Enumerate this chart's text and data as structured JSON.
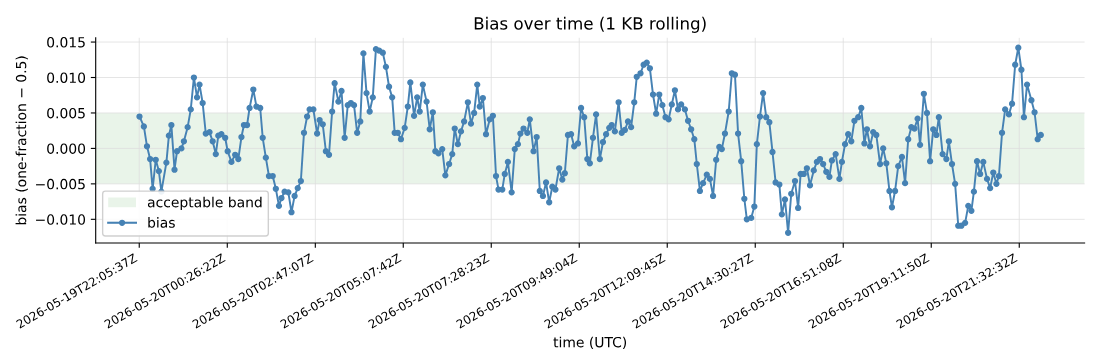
{
  "chart_data": {
    "type": "line",
    "title": "Bias over time (1 KB rolling)",
    "xlabel": "time (UTC)",
    "ylabel": "bias (one-fraction − 0.5)",
    "xlim": [
      "2026-05-19T20:56",
      "2026-05-20T23:17"
    ],
    "ylim": [
      -0.01334,
      0.0156
    ],
    "xticks": [
      {
        "value": "2026-05-19T22:05:37",
        "label": "2026-05-19T22:05:37Z"
      },
      {
        "value": "2026-05-20T00:26:22",
        "label": "2026-05-20T00:26:22Z"
      },
      {
        "value": "2026-05-20T02:47:07",
        "label": "2026-05-20T02:47:07Z"
      },
      {
        "value": "2026-05-20T05:07:42",
        "label": "2026-05-20T05:07:42Z"
      },
      {
        "value": "2026-05-20T07:28:23",
        "label": "2026-05-20T07:28:23Z"
      },
      {
        "value": "2026-05-20T09:49:04",
        "label": "2026-05-20T09:49:04Z"
      },
      {
        "value": "2026-05-20T12:09:45",
        "label": "2026-05-20T12:09:45Z"
      },
      {
        "value": "2026-05-20T14:30:27",
        "label": "2026-05-20T14:30:27Z"
      },
      {
        "value": "2026-05-20T16:51:08",
        "label": "2026-05-20T16:51:08Z"
      },
      {
        "value": "2026-05-20T19:11:50",
        "label": "2026-05-20T19:11:50Z"
      },
      {
        "value": "2026-05-20T21:32:32",
        "label": "2026-05-20T21:32:32Z"
      }
    ],
    "yticks": [
      {
        "value": -0.01,
        "label": "−0.010"
      },
      {
        "value": -0.005,
        "label": "−0.005"
      },
      {
        "value": 0,
        "label": "0.000"
      },
      {
        "value": 0.005,
        "label": "0.005"
      },
      {
        "value": 0.01,
        "label": "0.010"
      },
      {
        "value": 0.015,
        "label": "0.015"
      }
    ],
    "grid": true,
    "legend": "bottom left",
    "marker": "circle",
    "line_style": "solid",
    "bands": [
      {
        "axis": "y",
        "from": -0.005,
        "to": 0.005,
        "label": "acceptable band",
        "color": "#e9f4e9"
      }
    ],
    "series": [
      {
        "name": "bias",
        "color": "#4682b4",
        "x": [
          "2026-05-19T22:06",
          "2026-05-19T22:13",
          "2026-05-19T22:18",
          "2026-05-19T22:23",
          "2026-05-19T22:27",
          "2026-05-19T22:32",
          "2026-05-19T22:37",
          "2026-05-19T22:41",
          "2026-05-19T22:49",
          "2026-05-19T22:53",
          "2026-05-19T22:57",
          "2026-05-19T23:02",
          "2026-05-19T23:06",
          "2026-05-19T23:13",
          "2026-05-19T23:17",
          "2026-05-19T23:23",
          "2026-05-19T23:28",
          "2026-05-19T23:33",
          "2026-05-19T23:38",
          "2026-05-19T23:42",
          "2026-05-19T23:47",
          "2026-05-19T23:52",
          "2026-05-19T23:58",
          "2026-05-20T00:03",
          "2026-05-20T00:08",
          "2026-05-20T00:12",
          "2026-05-20T00:17",
          "2026-05-20T00:23",
          "2026-05-20T00:27",
          "2026-05-20T00:33",
          "2026-05-20T00:39",
          "2026-05-20T00:44",
          "2026-05-20T00:49",
          "2026-05-20T00:53",
          "2026-05-20T00:58",
          "2026-05-20T01:02",
          "2026-05-20T01:08",
          "2026-05-20T01:13",
          "2026-05-20T01:19",
          "2026-05-20T01:23",
          "2026-05-20T01:28",
          "2026-05-20T01:33",
          "2026-05-20T01:39",
          "2026-05-20T01:44",
          "2026-05-20T01:49",
          "2026-05-20T01:53",
          "2026-05-20T01:58",
          "2026-05-20T02:04",
          "2026-05-20T02:09",
          "2026-05-20T02:14",
          "2026-05-20T02:19",
          "2026-05-20T02:24",
          "2026-05-20T02:29",
          "2026-05-20T02:34",
          "2026-05-20T02:38",
          "2026-05-20T02:44",
          "2026-05-20T02:50",
          "2026-05-20T02:54",
          "2026-05-20T02:59",
          "2026-05-20T03:04",
          "2026-05-20T03:09",
          "2026-05-20T03:14",
          "2026-05-20T03:18",
          "2026-05-20T03:24",
          "2026-05-20T03:29",
          "2026-05-20T03:34",
          "2026-05-20T03:39",
          "2026-05-20T03:44",
          "2026-05-20T03:49",
          "2026-05-20T03:54",
          "2026-05-20T03:59",
          "2026-05-20T04:04",
          "2026-05-20T04:09",
          "2026-05-20T04:14",
          "2026-05-20T04:19",
          "2026-05-20T04:24",
          "2026-05-20T04:29",
          "2026-05-20T04:35",
          "2026-05-20T04:40",
          "2026-05-20T04:45",
          "2026-05-20T04:50",
          "2026-05-20T04:54",
          "2026-05-20T04:59",
          "2026-05-20T05:04",
          "2026-05-20T05:10",
          "2026-05-20T05:15",
          "2026-05-20T05:19",
          "2026-05-20T05:25",
          "2026-05-20T05:30",
          "2026-05-20T05:34",
          "2026-05-20T05:39",
          "2026-05-20T05:45",
          "2026-05-20T05:50",
          "2026-05-20T05:55",
          "2026-05-20T05:59",
          "2026-05-20T06:04",
          "2026-05-20T06:10",
          "2026-05-20T06:15",
          "2026-05-20T06:21",
          "2026-05-20T06:26",
          "2026-05-20T06:30",
          "2026-05-20T06:35",
          "2026-05-20T06:40",
          "2026-05-20T06:45",
          "2026-05-20T06:51",
          "2026-05-20T06:56",
          "2026-05-20T07:01",
          "2026-05-20T07:06",
          "2026-05-20T07:10",
          "2026-05-20T07:15",
          "2026-05-20T07:20",
          "2026-05-20T07:26",
          "2026-05-20T07:31",
          "2026-05-20T07:36",
          "2026-05-20T07:40",
          "2026-05-20T07:46",
          "2026-05-20T07:50",
          "2026-05-20T07:55",
          "2026-05-20T08:01",
          "2026-05-20T08:06",
          "2026-05-20T08:11",
          "2026-05-20T08:15",
          "2026-05-20T08:20",
          "2026-05-20T08:26",
          "2026-05-20T08:30",
          "2026-05-20T08:36",
          "2026-05-20T08:41",
          "2026-05-20T08:46",
          "2026-05-20T08:51",
          "2026-05-20T08:56",
          "2026-05-20T09:01",
          "2026-05-20T09:06",
          "2026-05-20T09:11",
          "2026-05-20T09:17",
          "2026-05-20T09:22",
          "2026-05-20T09:26",
          "2026-05-20T09:31",
          "2026-05-20T09:36",
          "2026-05-20T09:41",
          "2026-05-20T09:47",
          "2026-05-20T09:52",
          "2026-05-20T09:57",
          "2026-05-20T10:02",
          "2026-05-20T10:06",
          "2026-05-20T10:11",
          "2026-05-20T10:16",
          "2026-05-20T10:22",
          "2026-05-20T10:27",
          "2026-05-20T10:32",
          "2026-05-20T10:37",
          "2026-05-20T10:41",
          "2026-05-20T10:46",
          "2026-05-20T10:52",
          "2026-05-20T10:57",
          "2026-05-20T11:02",
          "2026-05-20T11:07",
          "2026-05-20T11:12",
          "2026-05-20T11:17",
          "2026-05-20T11:21",
          "2026-05-20T11:27",
          "2026-05-20T11:32",
          "2026-05-20T11:37",
          "2026-05-20T11:42",
          "2026-05-20T11:47",
          "2026-05-20T11:52",
          "2026-05-20T11:57",
          "2026-05-20T12:02",
          "2026-05-20T12:07",
          "2026-05-20T12:12",
          "2026-05-20T12:17",
          "2026-05-20T12:22",
          "2026-05-20T12:27",
          "2026-05-20T12:32",
          "2026-05-20T12:38",
          "2026-05-20T12:43",
          "2026-05-20T12:48",
          "2026-05-20T12:53",
          "2026-05-20T12:57",
          "2026-05-20T13:02",
          "2026-05-20T13:07",
          "2026-05-20T13:13",
          "2026-05-20T13:18",
          "2026-05-20T13:23",
          "2026-05-20T13:28",
          "2026-05-20T13:33",
          "2026-05-20T13:37",
          "2026-05-20T13:42",
          "2026-05-20T13:48",
          "2026-05-20T13:53",
          "2026-05-20T13:58",
          "2026-05-20T14:03",
          "2026-05-20T14:08",
          "2026-05-20T14:13",
          "2026-05-20T14:17",
          "2026-05-20T14:24",
          "2026-05-20T14:29",
          "2026-05-20T14:33",
          "2026-05-20T14:38",
          "2026-05-20T14:43",
          "2026-05-20T14:48",
          "2026-05-20T14:53",
          "2026-05-20T14:58",
          "2026-05-20T15:03",
          "2026-05-20T15:09",
          "2026-05-20T15:13",
          "2026-05-20T15:18",
          "2026-05-20T15:23",
          "2026-05-20T15:28",
          "2026-05-20T15:34",
          "2026-05-20T15:39",
          "2026-05-20T15:43",
          "2026-05-20T15:48",
          "2026-05-20T15:53",
          "2026-05-20T15:58",
          "2026-05-20T16:04",
          "2026-05-20T16:09",
          "2026-05-20T16:14",
          "2026-05-20T16:19",
          "2026-05-20T16:24",
          "2026-05-20T16:29",
          "2026-05-20T16:33",
          "2026-05-20T16:39",
          "2026-05-20T16:45",
          "2026-05-20T16:49",
          "2026-05-20T16:54",
          "2026-05-20T16:59",
          "2026-05-20T17:04",
          "2026-05-20T17:09",
          "2026-05-20T17:15",
          "2026-05-20T17:20",
          "2026-05-20T17:25",
          "2026-05-20T17:29",
          "2026-05-20T17:34",
          "2026-05-20T17:39",
          "2026-05-20T17:44",
          "2026-05-20T17:50",
          "2026-05-20T17:55",
          "2026-05-20T18:00",
          "2026-05-20T18:05",
          "2026-05-20T18:09",
          "2026-05-20T18:14",
          "2026-05-20T18:19",
          "2026-05-20T18:25",
          "2026-05-20T18:30",
          "2026-05-20T18:35",
          "2026-05-20T18:40",
          "2026-05-20T18:45",
          "2026-05-20T18:50",
          "2026-05-20T18:54",
          "2026-05-20T19:00",
          "2026-05-20T19:05",
          "2026-05-20T19:10",
          "2026-05-20T19:15",
          "2026-05-20T19:20",
          "2026-05-20T19:24",
          "2026-05-20T19:30",
          "2026-05-20T19:36",
          "2026-05-20T19:40",
          "2026-05-20T19:45",
          "2026-05-20T19:50",
          "2026-05-20T19:55",
          "2026-05-20T20:00",
          "2026-05-20T20:06",
          "2026-05-20T20:11",
          "2026-05-20T20:16",
          "2026-05-20T20:20",
          "2026-05-20T20:25",
          "2026-05-20T20:30",
          "2026-05-20T20:35",
          "2026-05-20T20:41",
          "2026-05-20T20:46",
          "2026-05-20T20:51",
          "2026-05-20T20:56",
          "2026-05-20T21:00",
          "2026-05-20T21:05",
          "2026-05-20T21:10",
          "2026-05-20T21:16",
          "2026-05-20T21:21",
          "2026-05-20T21:26",
          "2026-05-20T21:31",
          "2026-05-20T21:36",
          "2026-05-20T21:40",
          "2026-05-20T21:45",
          "2026-05-20T21:52",
          "2026-05-20T21:57",
          "2026-05-20T22:02",
          "2026-05-20T22:07"
        ],
        "values": [
          0.0045,
          0.0031,
          0.0003,
          -0.0015,
          -0.0057,
          -0.0016,
          -0.0032,
          -0.0061,
          -0.002,
          0.0018,
          0.0033,
          -0.003,
          -0.0004,
          0.0,
          0.001,
          0.003,
          0.0055,
          0.01,
          0.0072,
          0.009,
          0.0064,
          0.0021,
          0.0023,
          0.001,
          -0.0008,
          0.0018,
          0.002,
          0.0015,
          -0.0004,
          -0.0019,
          -0.0009,
          -0.0015,
          0.0016,
          0.0033,
          0.0033,
          0.0057,
          0.0083,
          0.0059,
          0.0057,
          0.0015,
          -0.0013,
          -0.0039,
          -0.0039,
          -0.0057,
          -0.0081,
          -0.007,
          -0.0061,
          -0.0062,
          -0.009,
          -0.0067,
          -0.0056,
          -0.0046,
          0.0022,
          0.0045,
          0.0055,
          0.0055,
          0.0021,
          0.004,
          0.0034,
          -0.0004,
          -0.0009,
          0.0052,
          0.0092,
          0.0066,
          0.0081,
          0.0015,
          0.0061,
          0.0064,
          0.0061,
          0.0022,
          0.0038,
          0.0134,
          0.0078,
          0.0052,
          0.0072,
          0.014,
          0.0138,
          0.0135,
          0.0115,
          0.0087,
          0.0072,
          0.0022,
          0.0022,
          0.0013,
          0.0029,
          0.0059,
          0.0093,
          0.0046,
          0.0072,
          0.0052,
          0.009,
          0.0066,
          0.0027,
          0.0051,
          -0.0004,
          -0.0007,
          -0.0001,
          -0.0038,
          -0.0022,
          -0.0008,
          0.0028,
          0.0006,
          0.0024,
          0.0038,
          0.0065,
          0.0035,
          0.005,
          0.009,
          0.0059,
          0.0071,
          0.002,
          0.0041,
          0.0046,
          -0.0039,
          -0.0058,
          -0.0058,
          -0.0036,
          -0.0019,
          -0.0062,
          -0.0001,
          0.0006,
          0.0021,
          0.0028,
          0.0022,
          0.0041,
          -0.0004,
          0.0016,
          -0.006,
          -0.0067,
          -0.0048,
          -0.0076,
          -0.0054,
          -0.0058,
          -0.0028,
          -0.0044,
          -0.0035,
          0.0019,
          0.002,
          0.0003,
          0.0007,
          0.0057,
          0.0044,
          -0.0015,
          -0.0021,
          0.0015,
          0.0048,
          -0.0015,
          0.0009,
          0.002,
          0.0029,
          0.0033,
          0.0024,
          0.0065,
          0.0022,
          0.0026,
          0.0038,
          0.003,
          0.0065,
          0.0101,
          0.0106,
          0.0118,
          0.0121,
          0.0113,
          0.0076,
          0.0049,
          0.0076,
          0.0061,
          0.0044,
          0.0041,
          0.0062,
          0.0082,
          0.0055,
          0.0062,
          0.0055,
          0.0039,
          0.0027,
          0.0013,
          -0.0022,
          -0.006,
          -0.0049,
          -0.0037,
          -0.0043,
          -0.0067,
          -0.0016,
          0.0002,
          -0.0001,
          0.0021,
          0.0052,
          0.0106,
          0.0104,
          0.0021,
          -0.0018,
          -0.0071,
          -0.01,
          -0.0098,
          -0.0082,
          0.0006,
          0.0045,
          0.0078,
          0.0044,
          0.0037,
          -0.0005,
          -0.0048,
          -0.0051,
          -0.0093,
          -0.0072,
          -0.0119,
          -0.0064,
          -0.0046,
          -0.0084,
          -0.0036,
          -0.0036,
          -0.0028,
          -0.0052,
          -0.0031,
          -0.0019,
          -0.0015,
          -0.0022,
          -0.0033,
          -0.004,
          -0.0017,
          -0.0008,
          -0.0043,
          -0.0019,
          0.0006,
          0.002,
          0.001,
          0.0039,
          0.0044,
          0.0057,
          0.0007,
          0.0027,
          0.0003,
          0.0023,
          0.0019,
          -0.0022,
          0.0,
          -0.0021,
          -0.006,
          -0.0083,
          -0.006,
          -0.0025,
          -0.0012,
          -0.0049,
          0.0013,
          0.003,
          0.0028,
          0.0042,
          0.0005,
          0.0077,
          0.005,
          -0.0018,
          0.0027,
          0.0019,
          0.0044,
          -0.0008,
          -0.0015,
          0.001,
          -0.0022,
          -0.005,
          -0.0109,
          -0.0109,
          -0.0105,
          -0.0081,
          -0.0088,
          -0.0061,
          -0.0018,
          -0.0036,
          -0.0019,
          -0.0043,
          -0.0056,
          -0.0034,
          -0.005,
          -0.0039,
          0.0022,
          0.0055,
          0.0048,
          0.0063,
          0.0118,
          0.0142,
          0.0111,
          0.0044,
          0.009,
          0.0068,
          0.0051,
          0.0013,
          0.0019
        ]
      }
    ]
  }
}
